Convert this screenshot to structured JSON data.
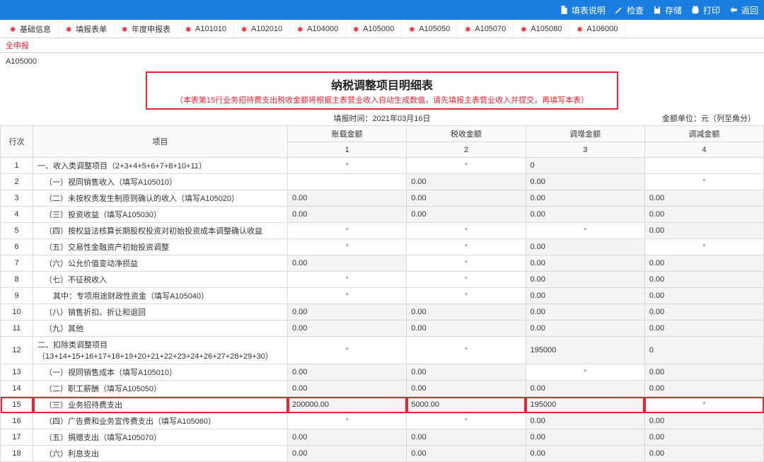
{
  "toolbar": {
    "desc": "填表说明",
    "check": "检查",
    "save": "存储",
    "print": "打印",
    "back": "返回"
  },
  "tabs": [
    "基础信息",
    "填报表单",
    "年度申报表",
    "A101010",
    "A102010",
    "A104000",
    "A105000",
    "A105050",
    "A105070",
    "A105080",
    "A106000"
  ],
  "sub_label": "全申报",
  "form_code": "A105000",
  "title": "纳税调整项目明细表",
  "subtitle": "（本表第15行业务招待费支出税收金额将根据主表营业收入自动生成数值，请先填报主表营业收入并提交，再填写本表）",
  "fill_time_label": "填报时间：",
  "fill_time_value": "2021年03月16日",
  "unit_label": "金额单位：元（列至角分）",
  "headers": {
    "seq": "行次",
    "item": "项目",
    "col1": "账载金额",
    "col2": "税收金额",
    "col3": "调增金额",
    "col4": "调减金额",
    "n1": "1",
    "n2": "2",
    "n3": "3",
    "n4": "4"
  },
  "rows": [
    {
      "seq": "1",
      "item": "一、收入类调整项目（2+3+4+5+6+7+8+10+11）",
      "c1": "*",
      "c2": "*",
      "c3": "0",
      "c4": "",
      "indent": 0
    },
    {
      "seq": "2",
      "item": "（一）视同销售收入（填写A105010）",
      "c1": "",
      "c2": "0.00",
      "c3": "0.00",
      "c4": "*",
      "indent": 1
    },
    {
      "seq": "3",
      "item": "（二）未按权责发生制原则确认的收入（填写A105020）",
      "c1": "0.00",
      "c2": "0.00",
      "c3": "0.00",
      "c4": "0.00",
      "indent": 1
    },
    {
      "seq": "4",
      "item": "（三）投资收益（填写A105030）",
      "c1": "0.00",
      "c2": "0.00",
      "c3": "0.00",
      "c4": "0.00",
      "indent": 1
    },
    {
      "seq": "5",
      "item": "（四）按权益法核算长期股权投资对初始投资成本调整确认收益",
      "c1": "*",
      "c2": "*",
      "c3": "*",
      "c4": "0.00",
      "indent": 1
    },
    {
      "seq": "6",
      "item": "（五）交易性金融资产初始投资调整",
      "c1": "*",
      "c2": "*",
      "c3": "0.00",
      "c4": "*",
      "indent": 1
    },
    {
      "seq": "7",
      "item": "（六）公允价值变动净损益",
      "c1": "0.00",
      "c2": "*",
      "c3": "0.00",
      "c4": "0.00",
      "indent": 1
    },
    {
      "seq": "8",
      "item": "（七）不征税收入",
      "c1": "*",
      "c2": "*",
      "c3": "0.00",
      "c4": "0.00",
      "indent": 1
    },
    {
      "seq": "9",
      "item": "   其中：专项用途财政性资金（填写A105040）",
      "c1": "*",
      "c2": "*",
      "c3": "0.00",
      "c4": "0.00",
      "indent": 2
    },
    {
      "seq": "10",
      "item": "（八）销售折扣、折让和退回",
      "c1": "0.00",
      "c2": "0.00",
      "c3": "0.00",
      "c4": "0.00",
      "indent": 1
    },
    {
      "seq": "11",
      "item": "（九）其他",
      "c1": "0.00",
      "c2": "0.00",
      "c3": "0.00",
      "c4": "0.00",
      "indent": 1
    },
    {
      "seq": "12",
      "item": "二、扣除类调整项目\n（13+14+15+16+17+18+19+20+21+22+23+24+26+27+28+29+30）",
      "c1": "*",
      "c2": "*",
      "c3": "195000",
      "c4": "0",
      "indent": 0
    },
    {
      "seq": "13",
      "item": "（一）视同销售成本（填写A105010）",
      "c1": "0.00",
      "c2": "0.00",
      "c3": "*",
      "c4": "0.00",
      "indent": 1
    },
    {
      "seq": "14",
      "item": "（二）职工薪酬（填写A105050）",
      "c1": "0.00",
      "c2": "0.00",
      "c3": "0.00",
      "c4": "0.00",
      "indent": 1
    },
    {
      "seq": "15",
      "item": "（三）业务招待费支出",
      "c1": "200000.00",
      "c2": "5000.00",
      "c3": "195000",
      "c4": "*",
      "indent": 1,
      "hl": true
    },
    {
      "seq": "16",
      "item": "（四）广告费和业务宣传费支出（填写A105060）",
      "c1": "*",
      "c2": "*",
      "c3": "0.00",
      "c4": "0.00",
      "indent": 1
    },
    {
      "seq": "17",
      "item": "（五）捐赠支出（填写A105070）",
      "c1": "0.00",
      "c2": "0.00",
      "c3": "0.00",
      "c4": "0.00",
      "indent": 1
    },
    {
      "seq": "18",
      "item": "（六）利息支出",
      "c1": "0.00",
      "c2": "0.00",
      "c3": "0.00",
      "c4": "0.00",
      "indent": 1
    }
  ]
}
